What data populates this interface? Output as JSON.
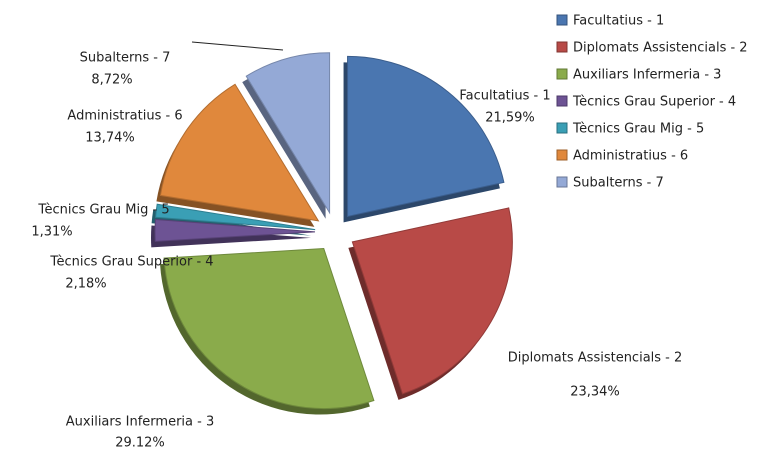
{
  "chart_data": {
    "type": "pie",
    "categories": [
      "Facultatius - 1",
      "Diplomats Assistencials - 2",
      "Auxiliars Infermeria - 3",
      "Tècnics Grau Superior - 4",
      "Tècnics Grau Mig - 5",
      "Administratius - 6",
      "Subalterns - 7"
    ],
    "values": [
      21.59,
      23.34,
      29.12,
      2.18,
      1.31,
      13.74,
      8.72
    ],
    "value_labels": [
      "21,59%",
      "23,34%",
      "29.12%",
      "2,18%",
      "1,31%",
      "13,74%",
      "8,72%"
    ],
    "colors": [
      "#4a76b0",
      "#b84a47",
      "#8aab4b",
      "#6d5394",
      "#3a9fb5",
      "#e0883c",
      "#94a9d6"
    ],
    "legend": "right"
  }
}
